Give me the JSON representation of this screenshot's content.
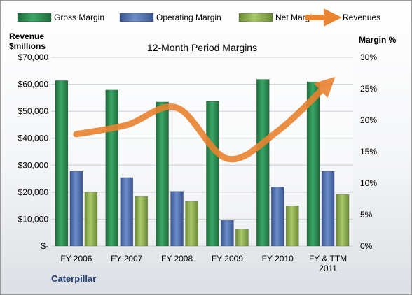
{
  "chart_data": {
    "type": "bar",
    "title": "12-Month Period Margins",
    "company": "Caterpillar",
    "categories": [
      [
        "FY 2006"
      ],
      [
        "FY 2007"
      ],
      [
        "FY 2008"
      ],
      [
        "FY 2009"
      ],
      [
        "FY 2010"
      ],
      [
        "FY & TTM",
        "2011"
      ]
    ],
    "left_axis": {
      "label_lines": [
        "Revenue",
        "$millions"
      ],
      "range": [
        0,
        70000
      ],
      "ticks": [
        "$-",
        "$10,000",
        "$20,000",
        "$30,000",
        "$40,000",
        "$50,000",
        "$60,000",
        "$70,000"
      ],
      "tick_values": [
        0,
        10000,
        20000,
        30000,
        40000,
        50000,
        60000,
        70000
      ]
    },
    "right_axis": {
      "label": "Margin %",
      "range": [
        0,
        30
      ],
      "ticks": [
        "0%",
        "5%",
        "10%",
        "15%",
        "20%",
        "25%",
        "30%"
      ],
      "tick_values": [
        0,
        5,
        10,
        15,
        20,
        25,
        30
      ]
    },
    "series": [
      {
        "name": "Gross Margin",
        "type": "bar",
        "axis": "right",
        "color": "#2e8b57",
        "values": [
          26.3,
          24.8,
          22.9,
          23.0,
          26.5,
          26.1
        ]
      },
      {
        "name": "Operating Margin",
        "type": "bar",
        "axis": "right",
        "color": "#4f6fae",
        "values": [
          11.9,
          10.9,
          8.7,
          4.1,
          9.4,
          11.9
        ]
      },
      {
        "name": "Net Margin",
        "type": "bar",
        "axis": "right",
        "color": "#8aab4e",
        "values": [
          8.6,
          7.9,
          7.1,
          2.7,
          6.4,
          8.2
        ]
      },
      {
        "name": "Revenues",
        "type": "line",
        "axis": "left",
        "color": "#e8832f",
        "values": [
          41500,
          44900,
          51300,
          32400,
          42600,
          60200
        ]
      }
    ],
    "grid": true,
    "legend_position": "top"
  }
}
